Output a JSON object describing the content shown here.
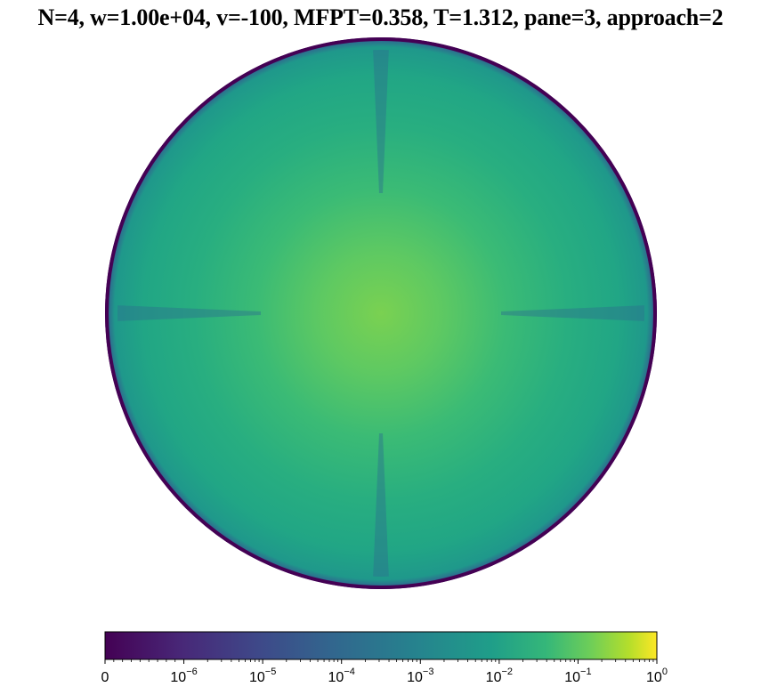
{
  "title": "N=4, w=1.00e+04, v=-100, MFPT=0.358, T=1.312, pane=3, approach=2",
  "chart_data": {
    "type": "heatmap",
    "title": "N=4, w=1.00e+04, v=-100, MFPT=0.358, T=1.312, pane=3, approach=2",
    "domain": "disk",
    "colormap": "viridis",
    "color_scale": "symlog",
    "color_range": [
      0,
      1
    ],
    "colorbar": {
      "placement": "bottom",
      "orientation": "horizontal",
      "tick_values": [
        0,
        1e-06,
        1e-05,
        0.0001,
        0.001,
        0.01,
        0.1,
        1
      ],
      "tick_labels": [
        {
          "base": "0",
          "exp": ""
        },
        {
          "base": "10",
          "exp": "−6"
        },
        {
          "base": "10",
          "exp": "−5"
        },
        {
          "base": "10",
          "exp": "−4"
        },
        {
          "base": "10",
          "exp": "−3"
        },
        {
          "base": "10",
          "exp": "−2"
        },
        {
          "base": "10",
          "exp": "−1"
        },
        {
          "base": "10",
          "exp": "0"
        }
      ]
    },
    "field": {
      "peak_value": 0.05,
      "peak_location": "center",
      "rim_value": 0,
      "targets": 4,
      "target_angles_deg": [
        90,
        180,
        270,
        360
      ]
    }
  }
}
